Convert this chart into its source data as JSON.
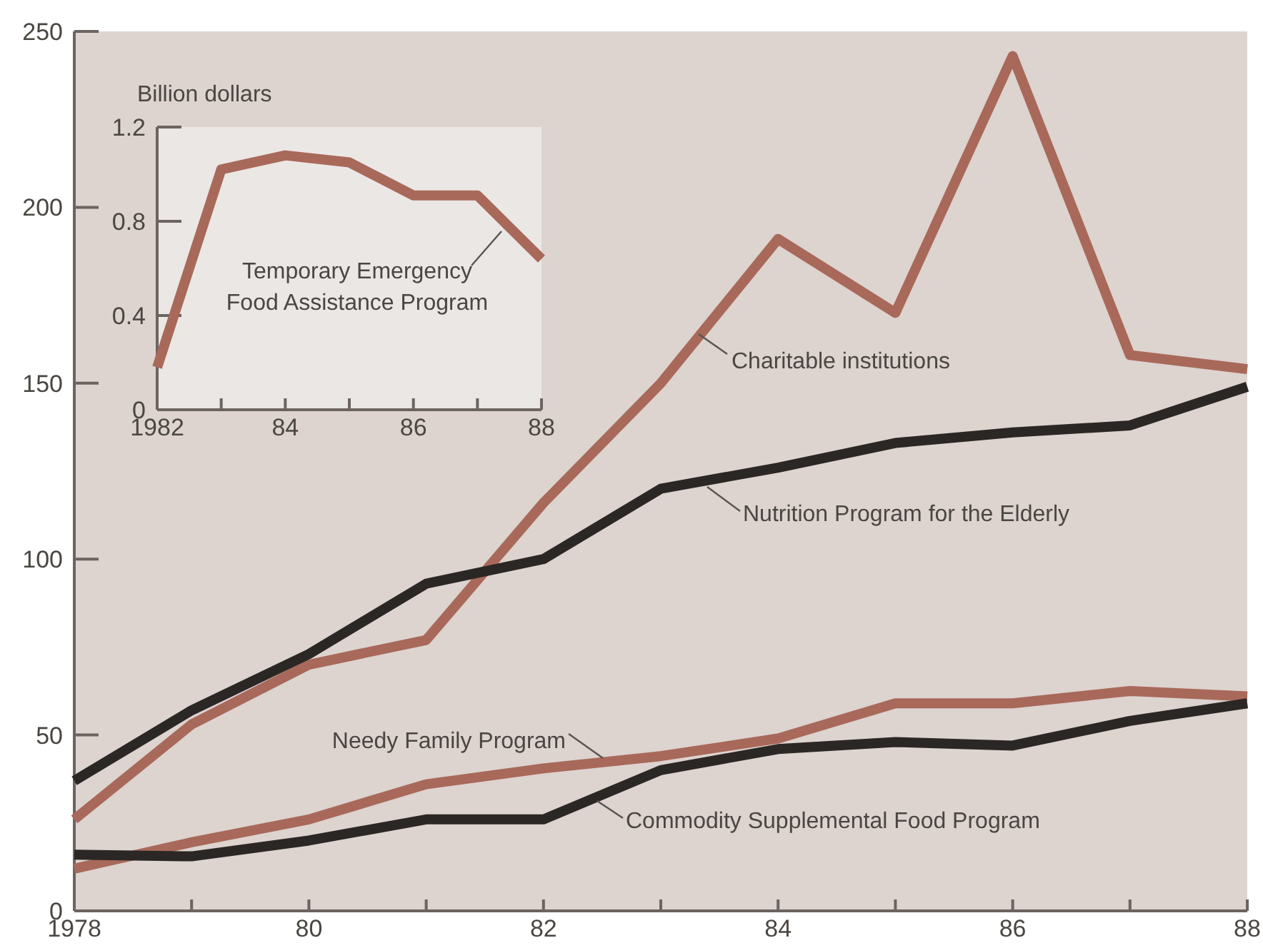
{
  "chart_data": [
    {
      "type": "line",
      "x": [
        1978,
        1979,
        1980,
        1981,
        1982,
        1983,
        1984,
        1985,
        1986,
        1987,
        1988
      ],
      "xlim": [
        1978,
        1988
      ],
      "xticks": [
        1978,
        {
          "value": 1979,
          "label": null
        },
        {
          "value": 1980,
          "label": "80"
        },
        {
          "value": 1981,
          "label": null
        },
        {
          "value": 1982,
          "label": "82"
        },
        {
          "value": 1983,
          "label": null
        },
        {
          "value": 1984,
          "label": "84"
        },
        {
          "value": 1985,
          "label": null
        },
        {
          "value": 1986,
          "label": "86"
        },
        {
          "value": 1987,
          "label": null
        },
        {
          "value": 1988,
          "label": "88"
        }
      ],
      "ylim": [
        0,
        250
      ],
      "yticks": [
        0,
        50,
        100,
        150,
        200,
        250
      ],
      "series": [
        {
          "name": "Charitable institutions",
          "color": "#a8695a",
          "values": [
            26,
            53,
            70,
            77,
            116,
            150,
            191,
            170,
            243,
            158,
            154
          ]
        },
        {
          "name": "Nutrition Program for the Elderly",
          "color": "#2b2724",
          "values": [
            37,
            57,
            73,
            93,
            100,
            120,
            126,
            133,
            136,
            138,
            149
          ]
        },
        {
          "name": "Needy Family Program",
          "color": "#a8695a",
          "values": [
            12,
            19.5,
            26,
            36,
            40.5,
            44,
            49,
            59,
            59,
            62.5,
            61
          ]
        },
        {
          "name": "Commodity Supplemental Food Program",
          "color": "#2b2724",
          "values": [
            16,
            15.5,
            20,
            26,
            26,
            40,
            46,
            48,
            47,
            54,
            59
          ]
        }
      ]
    },
    {
      "type": "line",
      "ylabel": "Billion dollars",
      "x": [
        1982,
        1983,
        1984,
        1985,
        1986,
        1987,
        1988
      ],
      "xlim": [
        1982,
        1988
      ],
      "xticks": [
        1982,
        {
          "value": 1983,
          "label": null
        },
        {
          "value": 1984,
          "label": "84"
        },
        {
          "value": 1985,
          "label": null
        },
        {
          "value": 1986,
          "label": "86"
        },
        {
          "value": 1987,
          "label": null
        },
        {
          "value": 1988,
          "label": "88"
        }
      ],
      "ylim": [
        0,
        1.2
      ],
      "yticks": [
        0,
        0.4,
        0.8,
        1.2
      ],
      "series": [
        {
          "name": "Temporary Emergency Food Assistance Program",
          "color": "#a8695a",
          "values": [
            0.18,
            1.02,
            1.08,
            1.05,
            0.91,
            0.91,
            0.64
          ]
        }
      ]
    }
  ]
}
